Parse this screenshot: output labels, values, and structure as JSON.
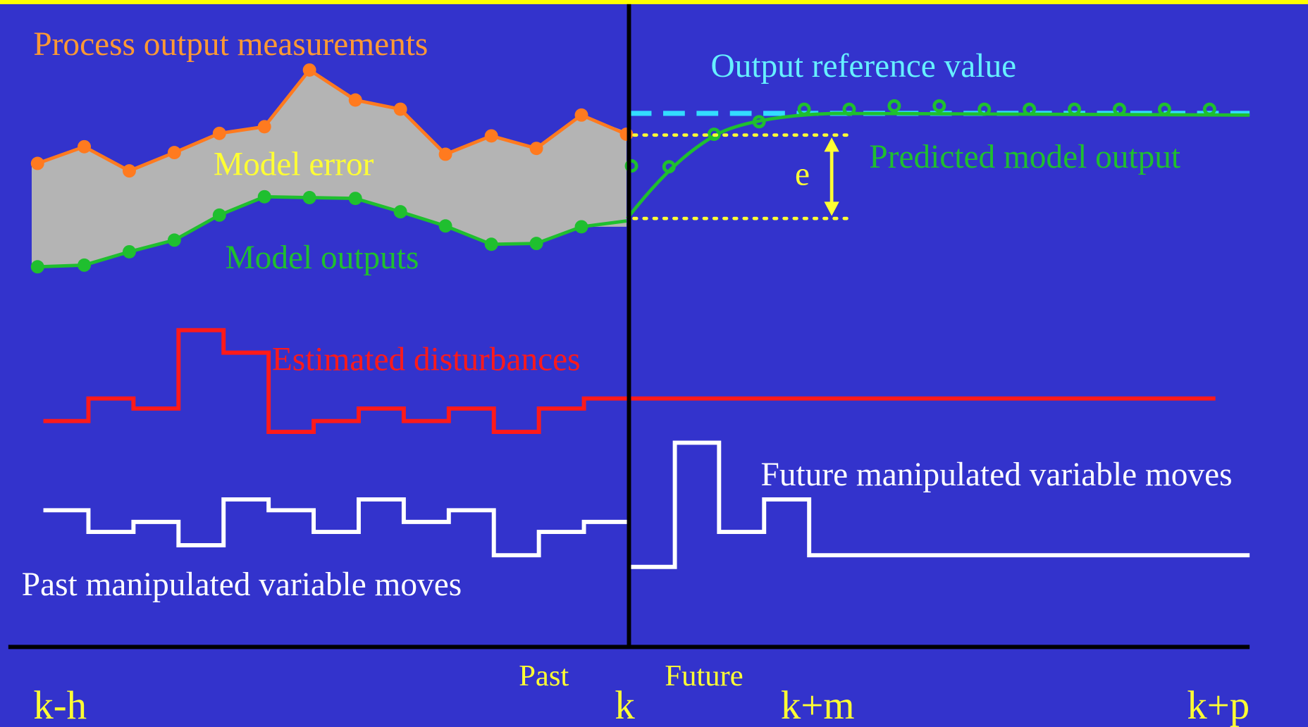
{
  "colors": {
    "background": "#3333cc",
    "top_border": "#ffff00",
    "measurements": "#ff7a1f",
    "model_output": "#1fbf2f",
    "model_error_fill": "#b4b4b4",
    "reference": "#33ddff",
    "disturbance": "#ff1a1a",
    "manipulated": "#ffffff",
    "axis": "#000000",
    "annotation": "#ffff33",
    "reference_label": "#66f0ff"
  },
  "labels": {
    "process_output_measurements": "Process output measurements",
    "output_reference_value": "Output reference value",
    "model_error": "Model error",
    "predicted_model_output": "Predicted model output",
    "model_outputs": "Model outputs",
    "error_symbol": "e",
    "estimated_disturbances": "Estimated disturbances",
    "future_manipulated_variable_moves": "Future manipulated variable moves",
    "past_manipulated_variable_moves": "Past manipulated variable moves",
    "past": "Past",
    "future": "Future"
  },
  "time_axis": {
    "tick_labels": [
      "k-h",
      "k",
      "k+m",
      "k+p"
    ]
  }
}
